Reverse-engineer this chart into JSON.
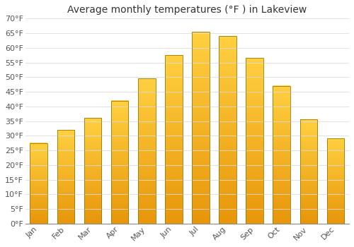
{
  "title": "Average monthly temperatures (°F ) in Lakeview",
  "months": [
    "Jan",
    "Feb",
    "Mar",
    "Apr",
    "May",
    "Jun",
    "Jul",
    "Aug",
    "Sep",
    "Oct",
    "Nov",
    "Dec"
  ],
  "values": [
    27.5,
    32,
    36,
    42,
    49.5,
    57.5,
    65.5,
    64,
    56.5,
    47,
    35.5,
    29
  ],
  "bar_color_top": "#FFC72C",
  "bar_color_bottom": "#F5A800",
  "bar_edge_color": "#B8860B",
  "background_color": "#FFFFFF",
  "grid_color": "#DDDDDD",
  "ylim": [
    0,
    70
  ],
  "yticks": [
    0,
    5,
    10,
    15,
    20,
    25,
    30,
    35,
    40,
    45,
    50,
    55,
    60,
    65,
    70
  ],
  "title_fontsize": 10,
  "tick_fontsize": 8,
  "font_family": "DejaVu Sans"
}
